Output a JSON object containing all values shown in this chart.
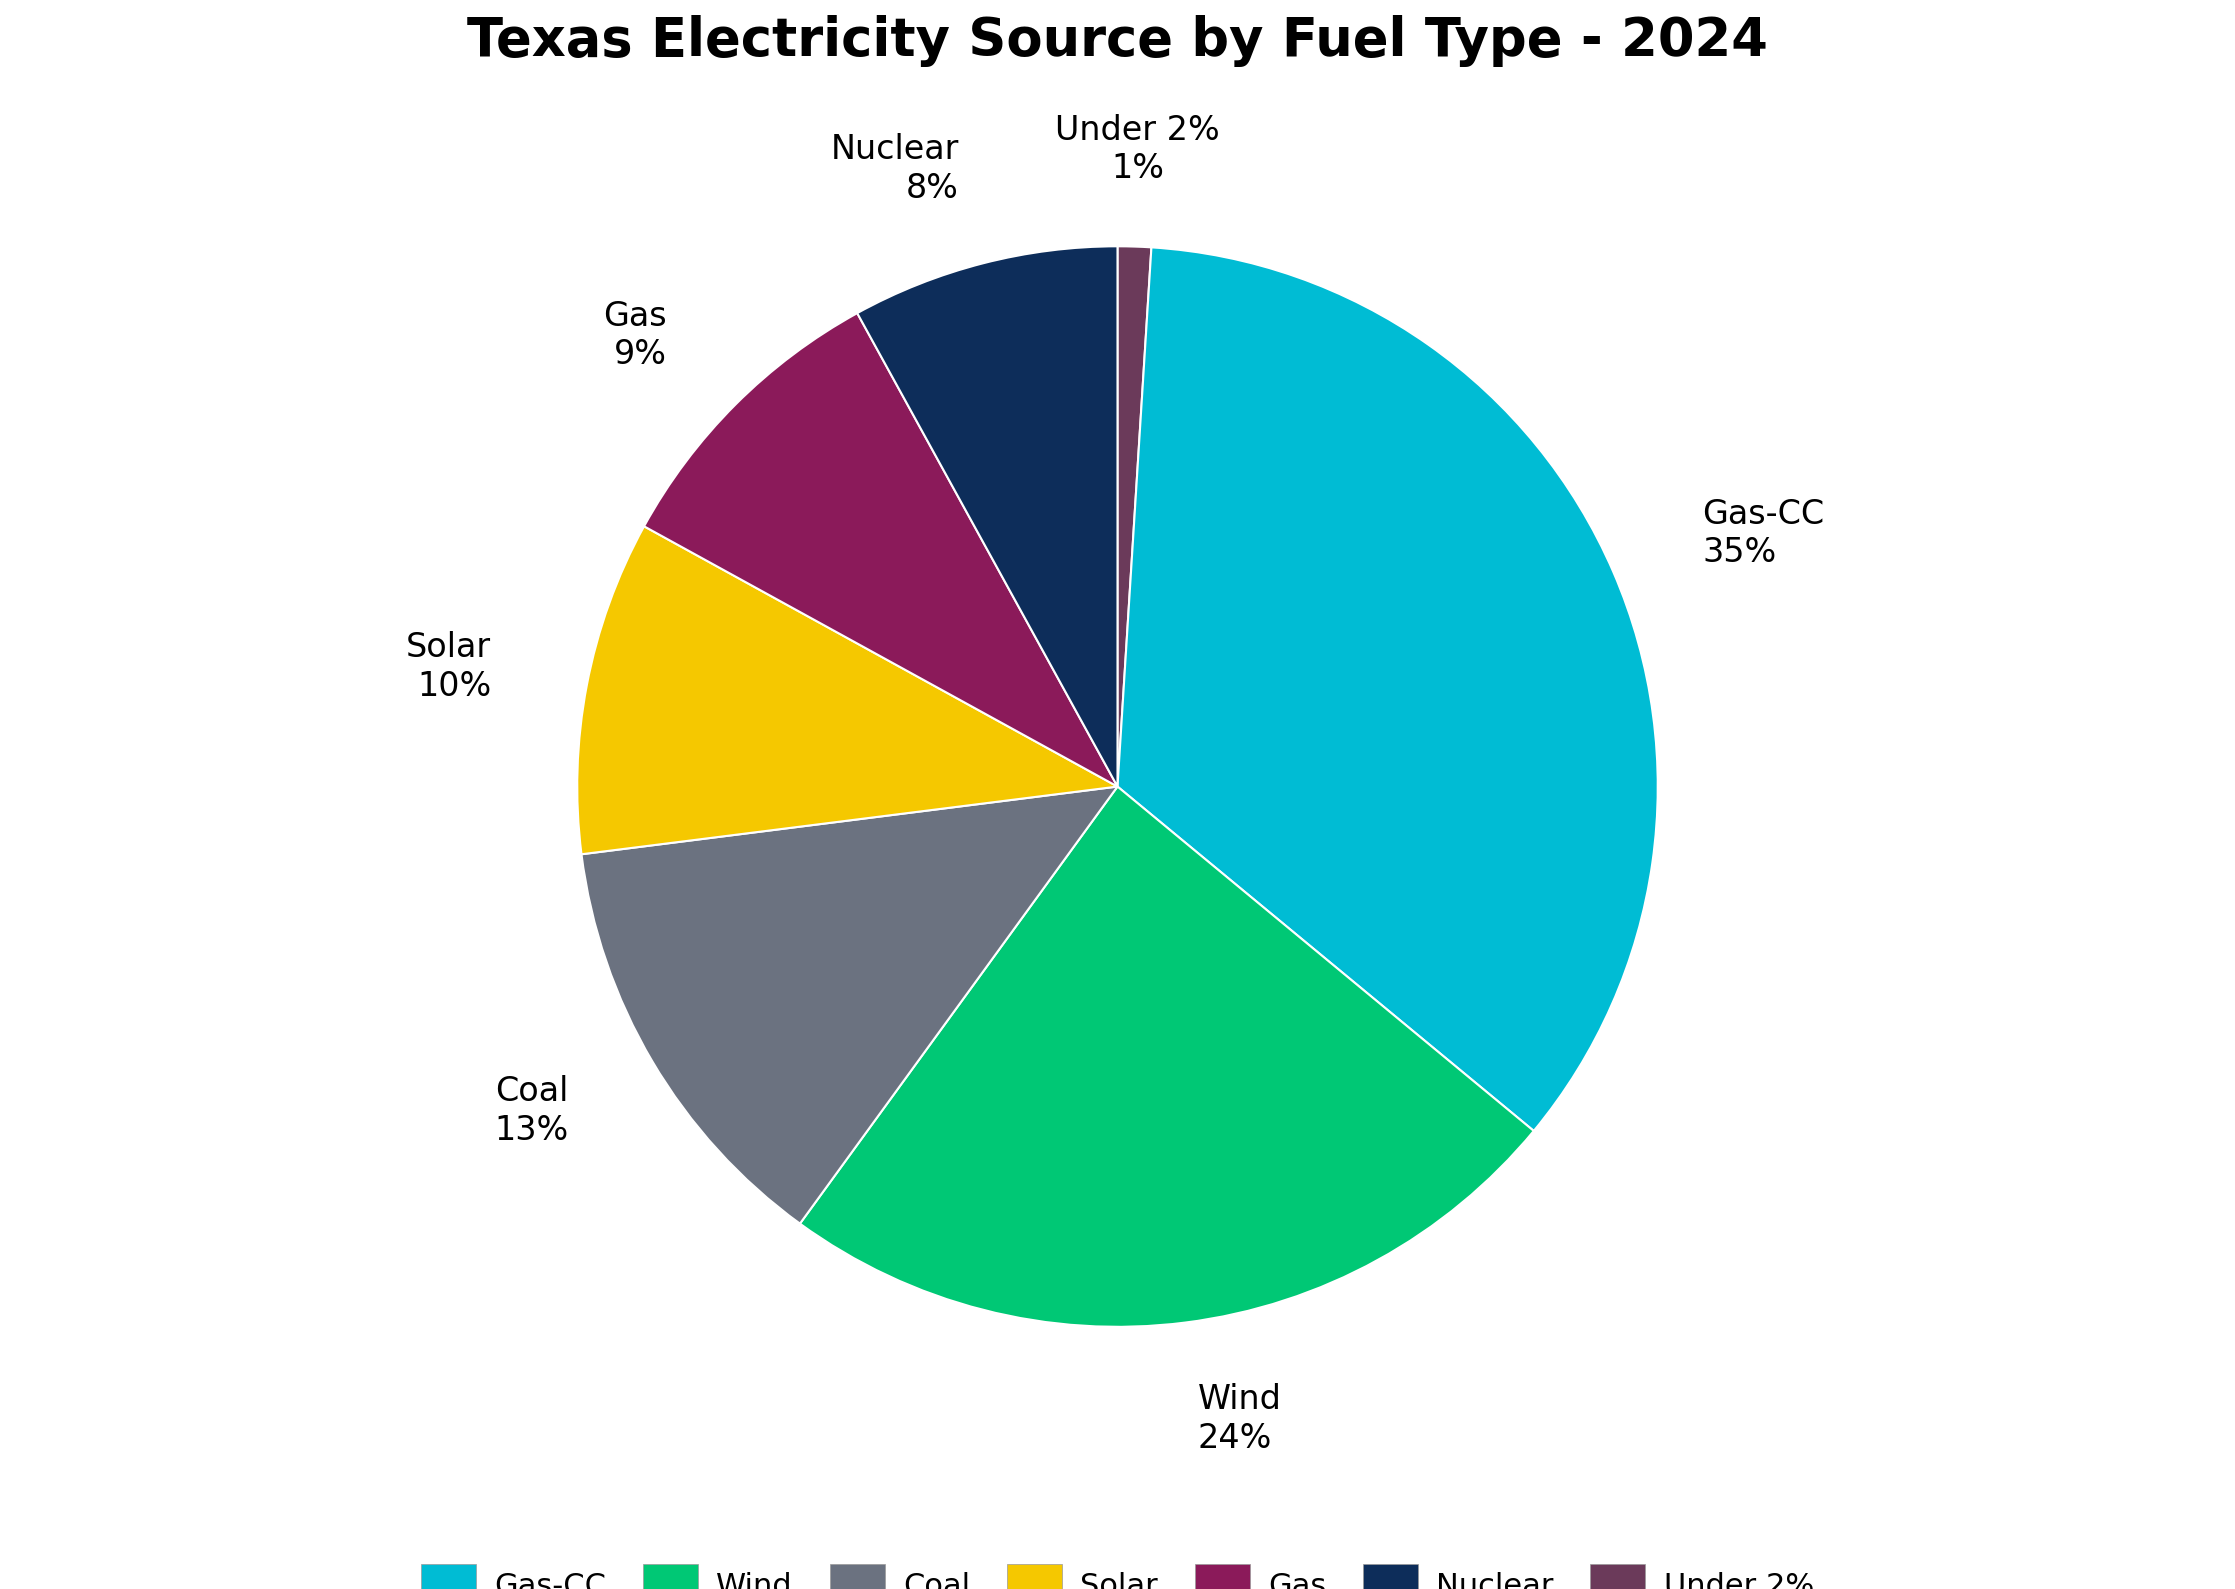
{
  "title": "Texas Electricity Source by Fuel Type - 2024",
  "labels": [
    "Gas-CC",
    "Wind",
    "Coal",
    "Solar",
    "Gas",
    "Nuclear",
    "Under 2%"
  ],
  "values": [
    35,
    24,
    13,
    10,
    9,
    8,
    1
  ],
  "colors": [
    "#00BCD4",
    "#00C875",
    "#6B7280",
    "#F5C800",
    "#8B1A5A",
    "#0D2D5A",
    "#6B3A5A"
  ],
  "title_fontsize": 38,
  "label_fontsize": 24,
  "legend_fontsize": 22,
  "background_color": "#FFFFFF"
}
